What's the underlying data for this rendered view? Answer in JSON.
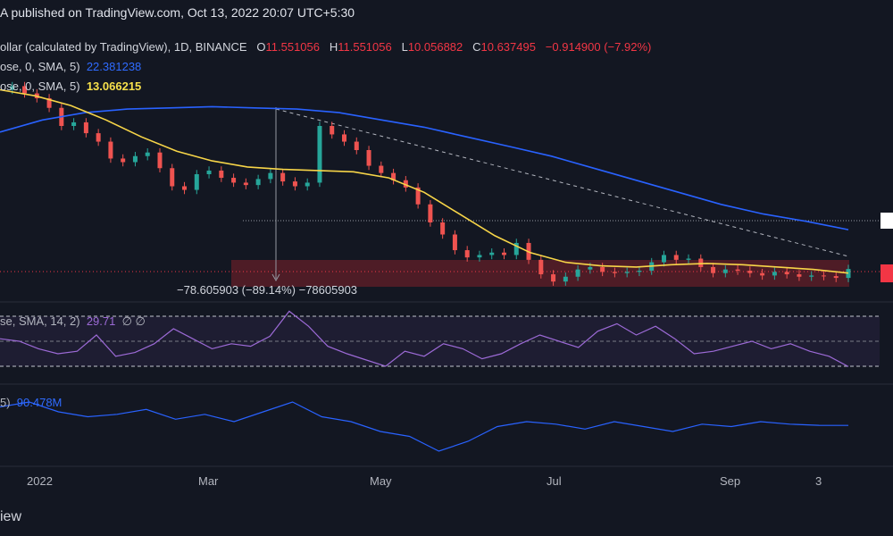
{
  "header": {
    "publish_note": "A published on TradingView.com, Oct 13, 2022 20:07 UTC+5:30"
  },
  "legend": {
    "symbol": "ollar (calculated by TradingView)",
    "interval": "1D",
    "exchange": "BINANCE",
    "o_label": "O",
    "open": "11.551056",
    "h_label": "H",
    "high": "11.551056",
    "l_label": "L",
    "low": "10.056882",
    "c_label": "C",
    "close": "10.637495",
    "change": "−0.914900 (−7.92%)"
  },
  "indicators": {
    "ma1_label": "ose, 0, SMA, 5)",
    "ma1_value": "22.381238",
    "ma2_label": "ose, 0, SMA, 5)",
    "ma2_value": "13.066215",
    "rsi_label": "se, SMA, 14, 2)",
    "rsi_value": "29.71",
    "rsi_extra": "∅ ∅",
    "obv_label": "5)",
    "obv_value": "90.478M"
  },
  "annotation": {
    "measure": "−78.605903 (−89.14%) −78605903"
  },
  "footer": {
    "logo": "iew"
  },
  "colors": {
    "up": "#26a69a",
    "down": "#ef5350",
    "sma_blue": "#2962ff",
    "sma_yellow": "#f7d548",
    "rsi": "#9c6ad6"
  },
  "chart_data": {
    "type": "line",
    "title": "",
    "x_ticks": [
      "2022",
      "Mar",
      "May",
      "Jul",
      "Sep",
      "3"
    ],
    "price_series": {
      "name": "",
      "values": [
        25.5,
        25.8,
        25.2,
        24.8,
        24.0,
        22.5,
        22.8,
        21.9,
        21.2,
        19.8,
        19.5,
        20.0,
        20.3,
        19.0,
        17.5,
        17.2,
        18.5,
        18.8,
        18.2,
        17.8,
        17.6,
        18.1,
        18.6,
        17.9,
        17.5,
        17.8,
        22.5,
        21.8,
        21.2,
        20.5,
        19.2,
        18.6,
        18.0,
        17.4,
        16.0,
        14.5,
        13.5,
        12.2,
        11.6,
        11.8,
        12.0,
        11.8,
        12.8,
        11.4,
        10.2,
        9.6,
        10.0,
        10.6,
        10.8,
        10.4,
        10.3,
        10.4,
        10.5,
        11.2,
        11.8,
        11.4,
        11.5,
        10.8,
        10.3,
        10.6,
        10.5,
        10.3,
        10.1,
        10.4,
        10.2,
        10.0,
        10.1,
        10.05,
        9.9,
        10.64
      ]
    },
    "sma_long": {
      "name": "",
      "values": [
        22.0,
        23.0,
        23.6,
        23.9,
        24.0,
        24.1,
        24.0,
        23.9,
        23.6,
        23.0,
        22.4,
        21.6,
        20.8,
        20.0,
        19.0,
        18.0,
        17.0,
        16.0,
        15.2,
        14.6,
        13.9
      ]
    },
    "sma_short": {
      "name": "",
      "values": [
        25.5,
        25.0,
        24.2,
        23.0,
        21.6,
        20.4,
        19.6,
        19.1,
        18.9,
        18.8,
        18.7,
        18.2,
        17.0,
        15.2,
        13.4,
        12.0,
        11.2,
        10.9,
        10.8,
        11.0,
        11.1,
        11.0,
        10.8,
        10.6,
        10.3
      ]
    },
    "rsi": {
      "name": "RSI",
      "values": [
        52,
        50,
        44,
        40,
        42,
        55,
        38,
        41,
        48,
        60,
        52,
        44,
        48,
        46,
        54,
        74,
        62,
        46,
        40,
        35,
        30,
        42,
        38,
        48,
        44,
        36,
        40,
        48,
        55,
        50,
        45,
        58,
        64,
        55,
        62,
        52,
        40,
        42,
        46,
        50,
        44,
        48,
        42,
        38,
        29.71
      ]
    },
    "obv": {
      "name": "OBV",
      "values": [
        98,
        100,
        96,
        94,
        95,
        97,
        93,
        95,
        92,
        96,
        100,
        94,
        92,
        88,
        86,
        80,
        84,
        90,
        92,
        91,
        89,
        92,
        90,
        88,
        91,
        90,
        92,
        91,
        90.5,
        90.478
      ]
    },
    "support_zone": [
      9.5,
      11.0
    ],
    "horizontal_level": 14.0,
    "rsi_bands": [
      70,
      50,
      30
    ],
    "ylim_price": [
      8.5,
      28.5
    ],
    "ylim_rsi": [
      20,
      80
    ]
  }
}
